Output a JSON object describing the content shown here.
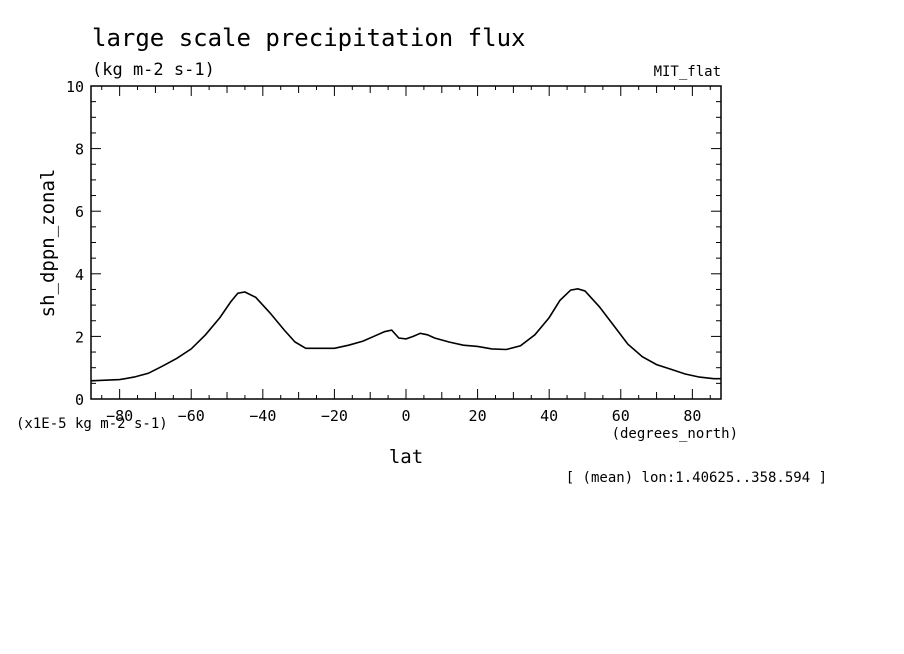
{
  "chart_data": {
    "type": "line",
    "title": "large scale precipitation flux",
    "subtitle": "(kg m-2 s-1)",
    "dataset_label": "MIT_flat",
    "xlabel": "lat",
    "xunits": "(degrees_north)",
    "ylabel": "sh_dppn_zonal",
    "yunits": "(x1E-5 kg m-2 s-1)",
    "footnote": "[ (mean) lon:1.40625..358.594 ]",
    "xlim": [
      -88,
      88
    ],
    "ylim": [
      0,
      10
    ],
    "xticks": [
      -80,
      -60,
      -40,
      -20,
      0,
      20,
      40,
      60,
      80
    ],
    "yticks": [
      0,
      2,
      4,
      6,
      8,
      10
    ],
    "grid": false,
    "line_color": "#000000",
    "series": [
      {
        "x": [
          -88,
          -80,
          -76,
          -72,
          -68,
          -64,
          -60,
          -56,
          -52,
          -49,
          -47,
          -45,
          -42,
          -38,
          -34,
          -31,
          -28,
          -24,
          -20,
          -16,
          -12,
          -8,
          -6,
          -4,
          -2,
          0,
          2,
          4,
          6,
          8,
          12,
          16,
          20,
          24,
          28,
          32,
          36,
          40,
          43,
          46,
          48,
          50,
          54,
          58,
          62,
          66,
          70,
          74,
          78,
          82,
          86,
          88
        ],
        "y": [
          0.58,
          0.62,
          0.7,
          0.82,
          1.05,
          1.3,
          1.6,
          2.05,
          2.6,
          3.1,
          3.38,
          3.42,
          3.25,
          2.75,
          2.2,
          1.82,
          1.62,
          1.62,
          1.62,
          1.72,
          1.85,
          2.05,
          2.15,
          2.2,
          1.95,
          1.92,
          2.0,
          2.1,
          2.05,
          1.95,
          1.82,
          1.72,
          1.68,
          1.6,
          1.58,
          1.7,
          2.05,
          2.6,
          3.15,
          3.48,
          3.52,
          3.45,
          2.95,
          2.35,
          1.75,
          1.35,
          1.1,
          0.95,
          0.8,
          0.7,
          0.65,
          0.65
        ]
      }
    ]
  }
}
